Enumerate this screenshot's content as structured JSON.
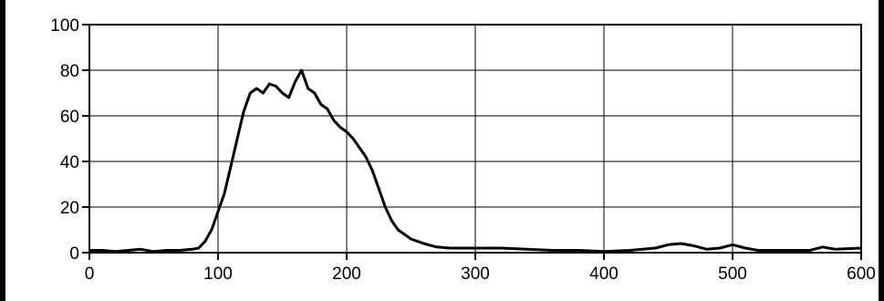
{
  "chart_data": {
    "type": "line",
    "title": "",
    "xlabel": "",
    "ylabel": "",
    "xlim": [
      0,
      600
    ],
    "ylim": [
      0,
      100
    ],
    "x_ticks": [
      0,
      100,
      200,
      300,
      400,
      500,
      600
    ],
    "y_ticks": [
      0,
      20,
      40,
      60,
      80,
      100
    ],
    "x_tick_labels": [
      "0",
      "100",
      "200",
      "300",
      "400",
      "500",
      "600"
    ],
    "y_tick_labels": [
      "0",
      "20",
      "40",
      "60",
      "80",
      "100"
    ],
    "grid": true,
    "legend": "none",
    "colors": {
      "line": "#000000",
      "grid": "#000000",
      "background": "#ffffff",
      "frame": "#000000"
    },
    "series": [
      {
        "x": [
          0,
          10,
          20,
          30,
          40,
          50,
          60,
          70,
          80,
          85,
          90,
          95,
          100,
          105,
          110,
          115,
          120,
          125,
          130,
          135,
          140,
          145,
          150,
          155,
          160,
          165,
          170,
          175,
          180,
          185,
          190,
          195,
          200,
          205,
          210,
          215,
          220,
          225,
          230,
          235,
          240,
          245,
          250,
          260,
          270,
          280,
          290,
          300,
          320,
          340,
          360,
          380,
          400,
          420,
          440,
          450,
          460,
          470,
          480,
          490,
          500,
          510,
          520,
          540,
          560,
          570,
          580,
          600
        ],
        "y": [
          1,
          1,
          0.5,
          1,
          1.5,
          0.5,
          1,
          1,
          1.5,
          2,
          5,
          10,
          18,
          26,
          38,
          50,
          62,
          70,
          72,
          70,
          74,
          73,
          70,
          68,
          75,
          80,
          72,
          70,
          65,
          63,
          58,
          55,
          53,
          50,
          46,
          42,
          36,
          28,
          20,
          14,
          10,
          8,
          6,
          4,
          2.5,
          2,
          2,
          2,
          2,
          1.5,
          1,
          1,
          0.5,
          1,
          2,
          3.5,
          4,
          3,
          1.5,
          2,
          3.5,
          2,
          1,
          1,
          1,
          2.5,
          1.5,
          2
        ]
      }
    ]
  }
}
